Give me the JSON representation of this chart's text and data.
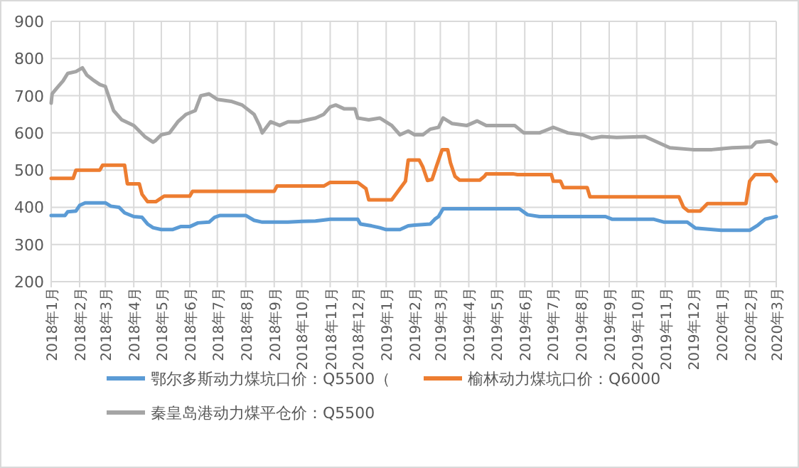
{
  "chart_data": {
    "type": "line",
    "xlim": [
      "2018-01-01",
      "2020-03-01"
    ],
    "ylim": [
      200,
      900
    ],
    "yticks": [
      200,
      300,
      400,
      500,
      600,
      700,
      800,
      900
    ],
    "xticks": [
      {
        "value": "2018-01-01",
        "label": "2018年1月"
      },
      {
        "value": "2018-02-01",
        "label": "2018年2月"
      },
      {
        "value": "2018-03-01",
        "label": "2018年3月"
      },
      {
        "value": "2018-04-01",
        "label": "2018年4月"
      },
      {
        "value": "2018-05-01",
        "label": "2018年5月"
      },
      {
        "value": "2018-06-01",
        "label": "2018年6月"
      },
      {
        "value": "2018-07-01",
        "label": "2018年7月"
      },
      {
        "value": "2018-08-01",
        "label": "2018年8月"
      },
      {
        "value": "2018-09-01",
        "label": "2018年9月"
      },
      {
        "value": "2018-10-01",
        "label": "2018年10月"
      },
      {
        "value": "2018-11-01",
        "label": "2018年11月"
      },
      {
        "value": "2018-12-01",
        "label": "2018年12月"
      },
      {
        "value": "2019-01-01",
        "label": "2019年1月"
      },
      {
        "value": "2019-02-01",
        "label": "2019年2月"
      },
      {
        "value": "2019-03-01",
        "label": "2019年3月"
      },
      {
        "value": "2019-04-01",
        "label": "2019年4月"
      },
      {
        "value": "2019-05-01",
        "label": "2019年5月"
      },
      {
        "value": "2019-06-01",
        "label": "2019年6月"
      },
      {
        "value": "2019-07-01",
        "label": "2019年7月"
      },
      {
        "value": "2019-08-01",
        "label": "2019年8月"
      },
      {
        "value": "2019-09-01",
        "label": "2019年9月"
      },
      {
        "value": "2019-10-01",
        "label": "2019年10月"
      },
      {
        "value": "2019-11-01",
        "label": "2019年11月"
      },
      {
        "value": "2019-12-01",
        "label": "2019年12月"
      },
      {
        "value": "2020-01-01",
        "label": "2020年1月"
      },
      {
        "value": "2020-02-01",
        "label": "2020年2月"
      },
      {
        "value": "2020-03-01",
        "label": "2020年3月"
      }
    ],
    "grid": true,
    "legend": "bottom",
    "marker": "none",
    "line_style": "solid",
    "series": [
      {
        "name": "鄂尔多斯动力煤坑口价：Q5500（",
        "color": "#5b9bd5",
        "x": [
          "2018-01-01",
          "2018-01-16",
          "2018-01-19",
          "2018-01-28",
          "2018-02-01",
          "2018-02-07",
          "2018-03-01",
          "2018-03-07",
          "2018-03-16",
          "2018-03-22",
          "2018-04-01",
          "2018-04-10",
          "2018-04-16",
          "2018-04-22",
          "2018-05-01",
          "2018-05-13",
          "2018-05-22",
          "2018-06-01",
          "2018-06-10",
          "2018-06-22",
          "2018-06-28",
          "2018-07-04",
          "2018-08-01",
          "2018-08-10",
          "2018-08-19",
          "2018-09-16",
          "2018-10-01",
          "2018-10-16",
          "2018-11-01",
          "2018-12-01",
          "2018-12-04",
          "2018-12-16",
          "2018-12-25",
          "2019-01-01",
          "2019-01-16",
          "2019-01-25",
          "2019-02-01",
          "2019-02-18",
          "2019-02-23",
          "2019-02-27",
          "2019-03-04",
          "2019-05-26",
          "2019-06-04",
          "2019-06-17",
          "2019-08-28",
          "2019-09-04",
          "2019-10-19",
          "2019-10-31",
          "2019-11-25",
          "2019-12-04",
          "2020-01-01",
          "2020-02-01",
          "2020-02-10",
          "2020-02-18",
          "2020-03-01"
        ],
        "values": [
          378,
          378,
          388,
          390,
          405,
          412,
          412,
          403,
          400,
          385,
          375,
          373,
          355,
          345,
          340,
          340,
          348,
          348,
          358,
          360,
          373,
          378,
          378,
          365,
          360,
          360,
          362,
          363,
          368,
          368,
          355,
          350,
          345,
          340,
          340,
          350,
          352,
          355,
          368,
          375,
          396,
          396,
          380,
          375,
          375,
          368,
          368,
          360,
          360,
          344,
          338,
          338,
          352,
          368,
          375
        ]
      },
      {
        "name": "榆林动力煤坑口价：Q6000",
        "color": "#ed7d31",
        "x": [
          "2018-01-01",
          "2018-01-25",
          "2018-01-28",
          "2018-02-23",
          "2018-02-26",
          "2018-03-22",
          "2018-03-25",
          "2018-04-07",
          "2018-04-10",
          "2018-04-16",
          "2018-04-25",
          "2018-05-01",
          "2018-05-04",
          "2018-06-01",
          "2018-06-04",
          "2018-09-01",
          "2018-09-04",
          "2018-10-25",
          "2018-11-01",
          "2018-12-01",
          "2018-12-10",
          "2018-12-13",
          "2019-01-07",
          "2019-01-10",
          "2019-01-16",
          "2019-01-22",
          "2019-01-25",
          "2019-02-06",
          "2019-02-10",
          "2019-02-15",
          "2019-02-20",
          "2019-02-25",
          "2019-03-03",
          "2019-03-09",
          "2019-03-12",
          "2019-03-17",
          "2019-03-22",
          "2019-04-13",
          "2019-04-18",
          "2019-04-20",
          "2019-05-19",
          "2019-05-24",
          "2019-06-30",
          "2019-07-02",
          "2019-07-10",
          "2019-07-13",
          "2019-08-08",
          "2019-08-11",
          "2019-11-16",
          "2019-11-21",
          "2019-11-26",
          "2019-12-09",
          "2019-12-17",
          "2020-01-28",
          "2020-02-01",
          "2020-02-07",
          "2020-02-24",
          "2020-03-01"
        ],
        "values": [
          478,
          478,
          500,
          500,
          513,
          513,
          463,
          463,
          435,
          415,
          415,
          425,
          430,
          430,
          443,
          443,
          457,
          457,
          467,
          467,
          450,
          420,
          420,
          430,
          450,
          470,
          527,
          527,
          508,
          472,
          475,
          512,
          555,
          555,
          520,
          483,
          473,
          473,
          483,
          490,
          490,
          488,
          488,
          470,
          470,
          453,
          453,
          428,
          428,
          400,
          390,
          390,
          410,
          410,
          470,
          488,
          488,
          470
        ]
      },
      {
        "name": "秦皇岛港动力煤平仓价：Q5500",
        "color": "#a5a5a5",
        "x": [
          "2018-01-01",
          "2018-01-02",
          "2018-01-07",
          "2018-01-14",
          "2018-01-19",
          "2018-01-28",
          "2018-02-04",
          "2018-02-09",
          "2018-02-17",
          "2018-02-23",
          "2018-03-01",
          "2018-03-10",
          "2018-03-19",
          "2018-04-01",
          "2018-04-13",
          "2018-04-22",
          "2018-04-25",
          "2018-05-01",
          "2018-05-10",
          "2018-05-19",
          "2018-05-28",
          "2018-06-07",
          "2018-06-13",
          "2018-06-22",
          "2018-07-01",
          "2018-07-16",
          "2018-07-28",
          "2018-08-10",
          "2018-08-16",
          "2018-08-19",
          "2018-08-28",
          "2018-09-07",
          "2018-09-16",
          "2018-09-28",
          "2018-10-07",
          "2018-10-16",
          "2018-10-25",
          "2018-11-01",
          "2018-11-07",
          "2018-11-16",
          "2018-11-28",
          "2018-12-01",
          "2018-12-13",
          "2018-12-25",
          "2019-01-07",
          "2019-01-16",
          "2019-01-25",
          "2019-02-01",
          "2019-02-10",
          "2019-02-18",
          "2019-02-27",
          "2019-03-04",
          "2019-03-14",
          "2019-03-30",
          "2019-04-10",
          "2019-04-20",
          "2019-05-21",
          "2019-05-31",
          "2019-06-17",
          "2019-07-02",
          "2019-07-18",
          "2019-08-03",
          "2019-08-13",
          "2019-08-24",
          "2019-09-09",
          "2019-10-10",
          "2019-11-06",
          "2019-12-01",
          "2019-12-22",
          "2020-01-13",
          "2020-02-03",
          "2020-02-08",
          "2020-02-23",
          "2020-03-01"
        ],
        "values": [
          680,
          705,
          720,
          740,
          760,
          765,
          775,
          755,
          740,
          730,
          725,
          660,
          635,
          620,
          590,
          575,
          580,
          595,
          600,
          630,
          650,
          660,
          700,
          705,
          690,
          685,
          675,
          650,
          620,
          600,
          630,
          620,
          630,
          630,
          635,
          640,
          650,
          670,
          675,
          665,
          665,
          640,
          635,
          640,
          620,
          595,
          605,
          595,
          595,
          610,
          615,
          640,
          625,
          620,
          632,
          620,
          620,
          600,
          600,
          615,
          600,
          595,
          585,
          590,
          588,
          590,
          560,
          555,
          555,
          560,
          562,
          575,
          578,
          570
        ]
      }
    ]
  }
}
